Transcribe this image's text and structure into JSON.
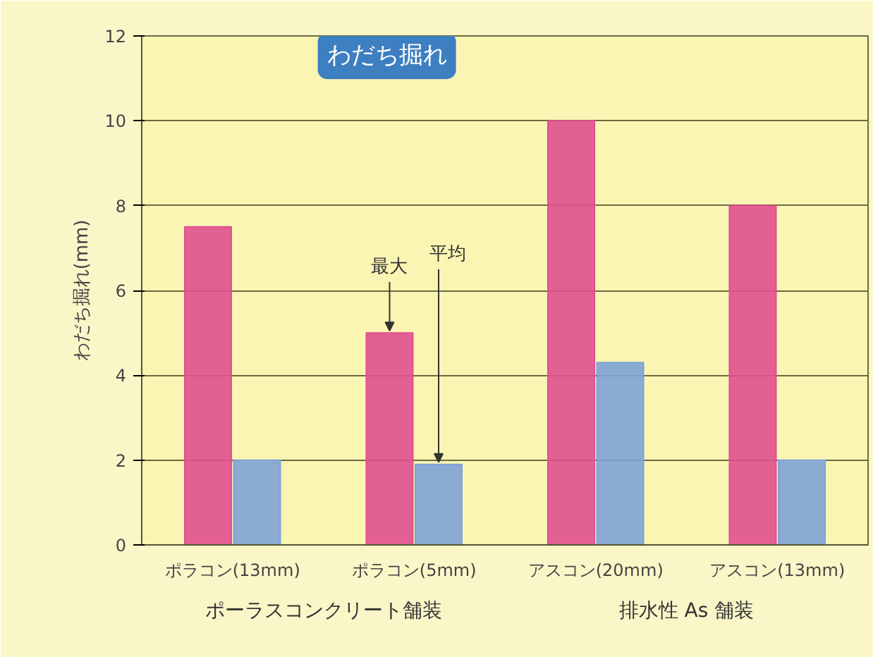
{
  "chart_data": {
    "type": "bar",
    "title": "わだち掘れ",
    "ylabel": "わだち掘れ(mm)",
    "categories": [
      "ポラコン(13mm)",
      "ポラコン(5mm)",
      "アスコン(20mm)",
      "アスコン(13mm)"
    ],
    "series": [
      {
        "name": "最大",
        "color": "#e0508f",
        "values": [
          7.5,
          5.0,
          10.0,
          8.0
        ]
      },
      {
        "name": "平均",
        "color": "#7ea3d6",
        "values": [
          2.0,
          1.9,
          4.3,
          2.0
        ]
      }
    ],
    "ylim": [
      0,
      12
    ],
    "yticks": [
      0,
      2,
      4,
      6,
      8,
      10,
      12
    ],
    "grid": "y",
    "annotations": [
      "ポーラスコンクリート舗装",
      "排水性 As 舗装"
    ]
  }
}
